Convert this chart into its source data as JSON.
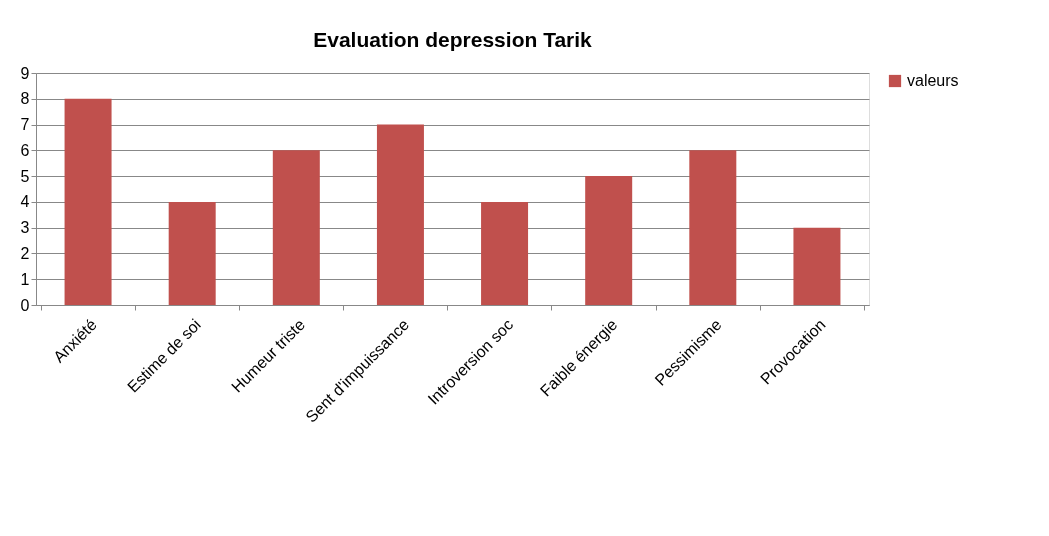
{
  "chart_data": {
    "type": "bar",
    "title": "Evaluation depression Tarik",
    "categories": [
      "Anxiété",
      "Estime de soi",
      "Humeur triste",
      "Sent d'impuissance",
      "Introversion soc",
      "Faible énergie",
      "Pessimisme",
      "Provocation"
    ],
    "series": [
      {
        "name": "valeurs",
        "color": "#c0504d",
        "values": [
          8,
          4,
          6,
          7,
          4,
          5,
          6,
          3
        ]
      }
    ],
    "ylim": [
      0,
      9
    ],
    "yticks": [
      0,
      1,
      2,
      3,
      4,
      5,
      6,
      7,
      8,
      9
    ],
    "grid": "y",
    "legend": "right"
  }
}
